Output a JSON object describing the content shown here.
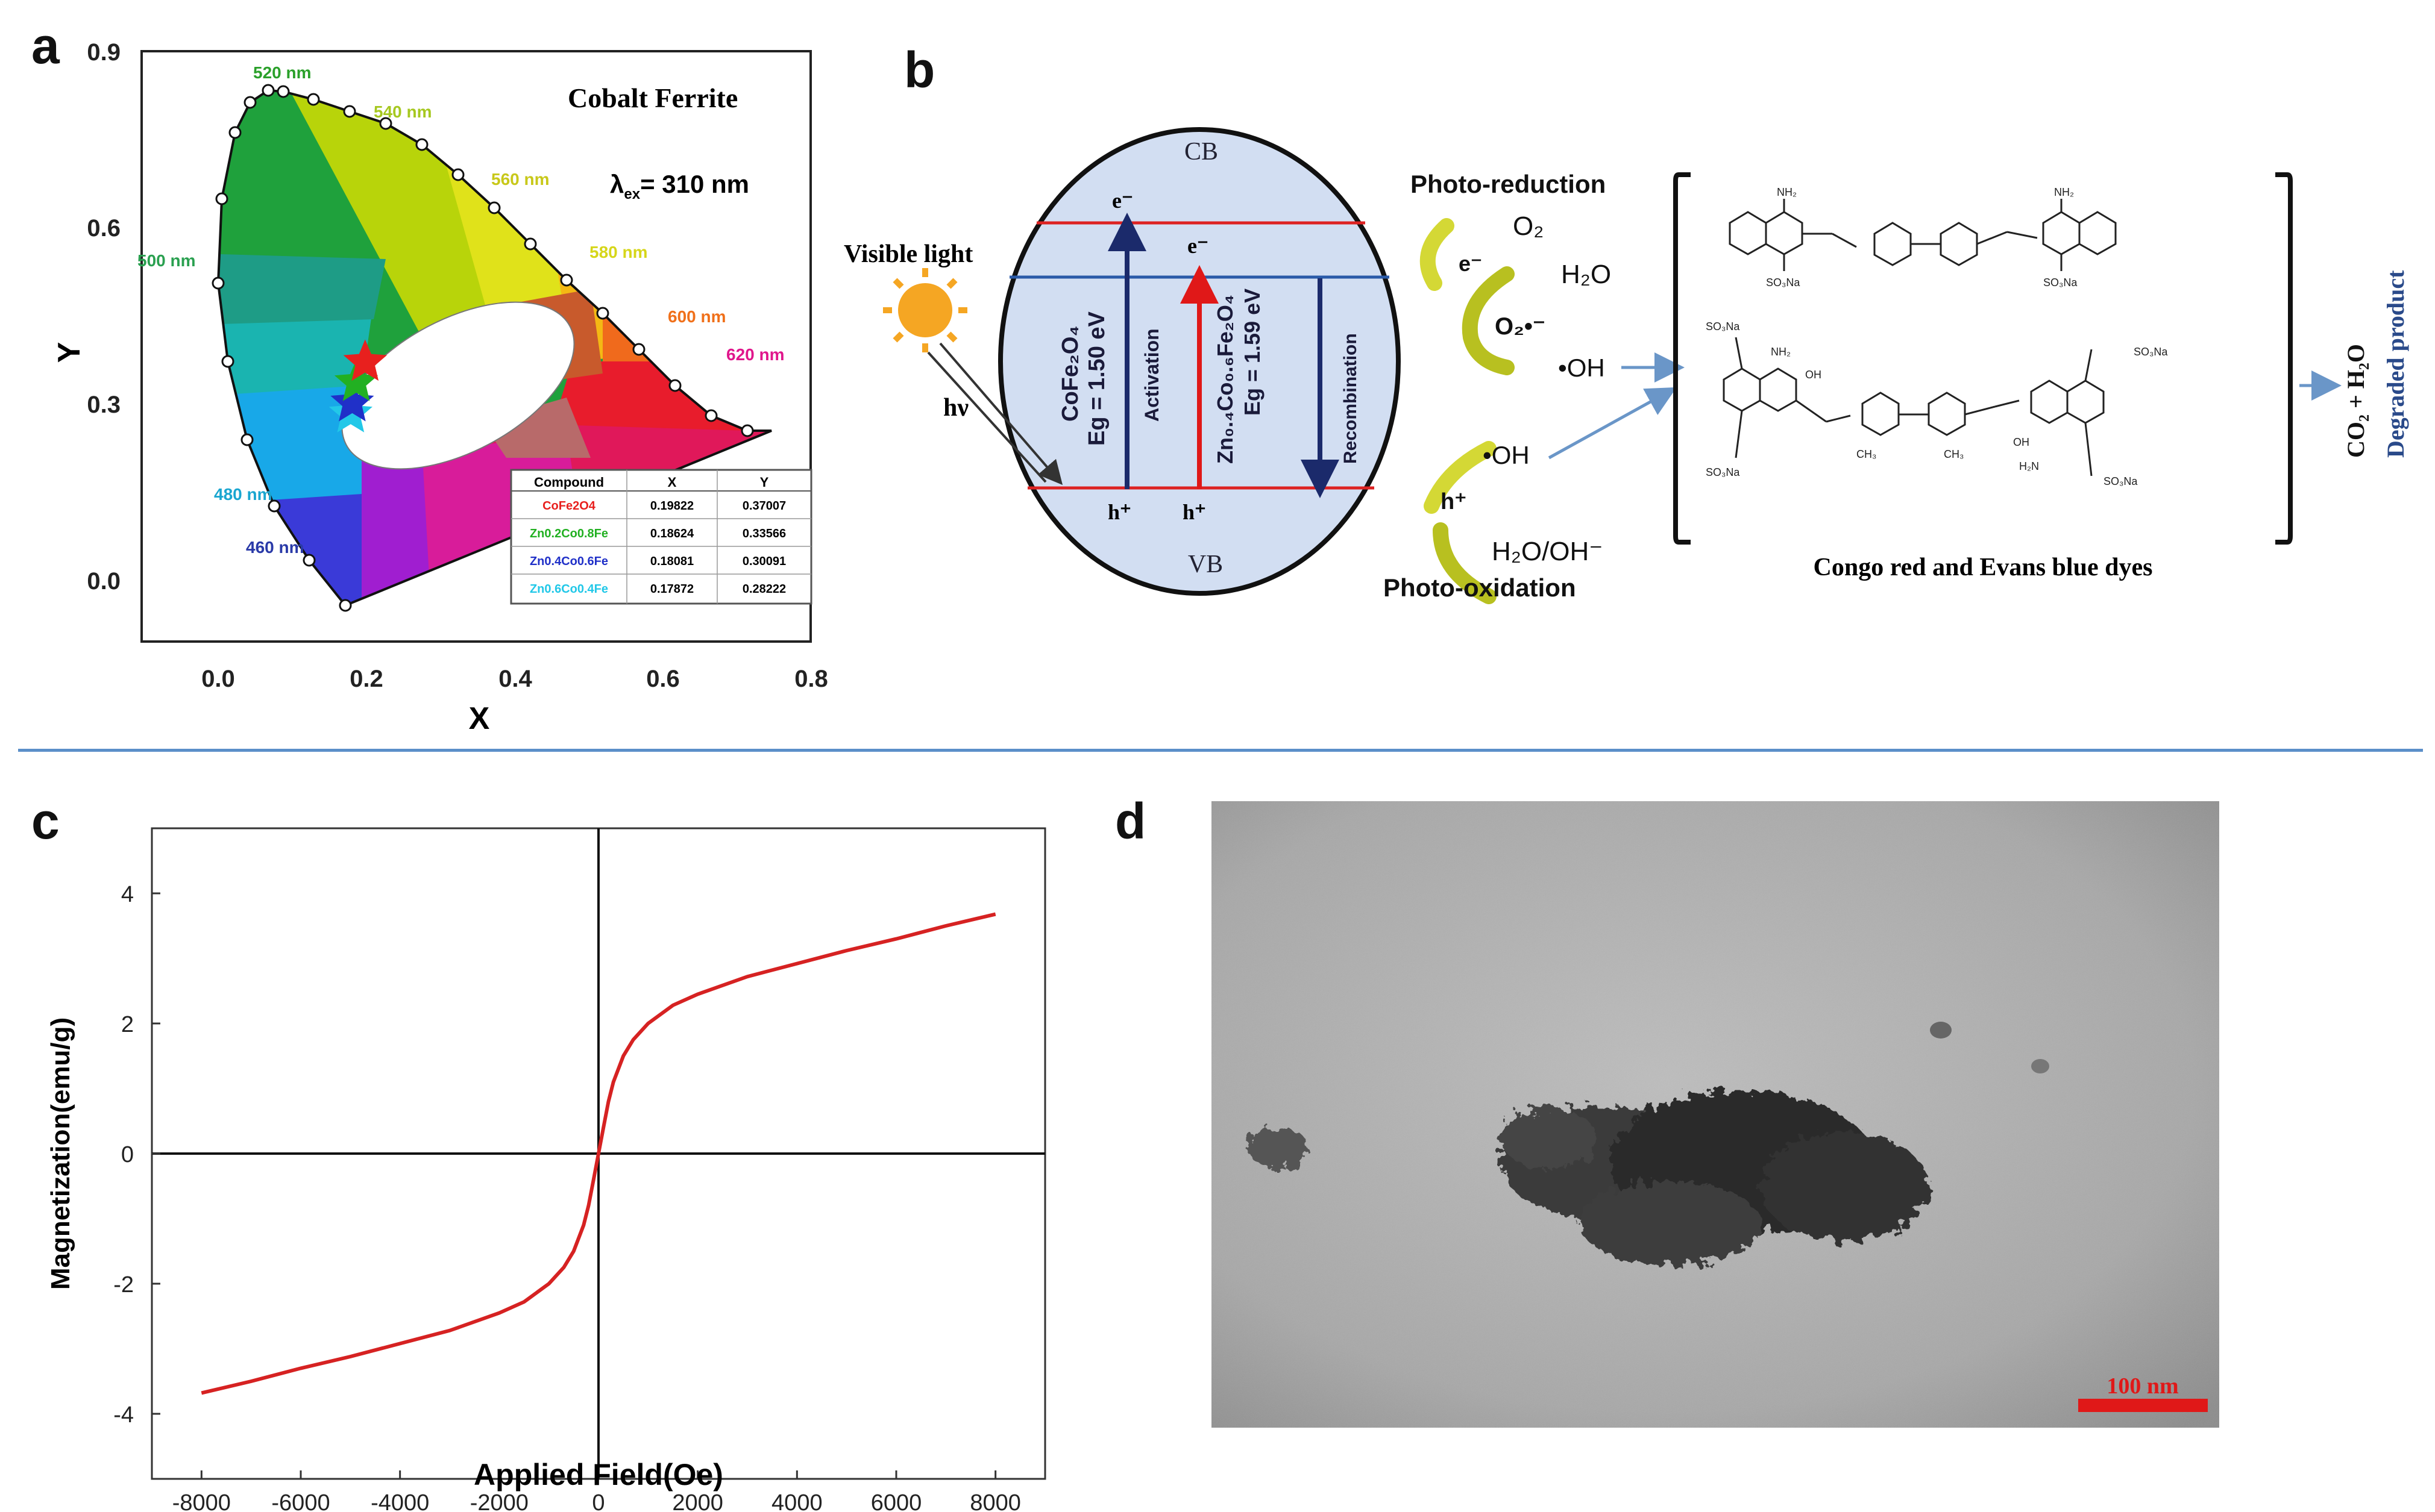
{
  "panels": {
    "a": "a",
    "b": "b",
    "c": "c",
    "d": "d"
  },
  "panel_a": {
    "title": "Cobalt Ferrite",
    "lambda_label": "λ",
    "lambda_sub": "ex",
    "lambda_value": "= 310 nm",
    "wavelength_labels": {
      "w520": "520 nm",
      "w540": "540 nm",
      "w560": "560 nm",
      "w580": "580 nm",
      "w500": "500 nm",
      "w600": "600 nm",
      "w620": "620 nm",
      "w480": "480 nm",
      "w460": "460 nm"
    },
    "colors": {
      "w520": "#2aa02a",
      "w540": "#a6c820",
      "w560": "#d0d020",
      "w580": "#d6d61a",
      "w500": "#2aa050",
      "w600": "#f0701a",
      "w620": "#e0168c",
      "w480": "#1aa6d0",
      "w460": "#2a3aa8"
    },
    "table": {
      "headers": [
        "Compound",
        "X",
        "Y"
      ],
      "rows": [
        {
          "name": "CoFe2O4",
          "x": "0.19822",
          "y": "0.37007",
          "color": "#e8201e"
        },
        {
          "name": "Zn0.2Co0.8Fe",
          "x": "0.18624",
          "y": "0.33566",
          "color": "#22b022"
        },
        {
          "name": "Zn0.4Co0.6Fe",
          "x": "0.18081",
          "y": "0.30091",
          "color": "#2030c8"
        },
        {
          "name": "Zn0.6Co0.4Fe",
          "x": "0.17872",
          "y": "0.28222",
          "color": "#22c8e8"
        }
      ]
    }
  },
  "panel_b": {
    "cb": "CB",
    "vb": "VB",
    "visible_light": "Visible light",
    "hv": "hν",
    "e_minus": "e⁻",
    "h_plus": "h⁺",
    "cofe": "CoFe₂O₄",
    "eg1": "Eg = 1.50 eV",
    "activation": "Activation",
    "znco": "Zn₀.₄Co₀.₆Fe₂O₄",
    "eg2": "Eg = 1.59 eV",
    "recombination": "Recombination",
    "photo_reduction": "Photo-reduction",
    "o2": "O₂",
    "h2o": "H₂O",
    "o2_radical": "O₂•⁻",
    "oh_radical": "•OH",
    "photo_oxidation": "Photo-oxidation",
    "h2o_oh": "H₂O/OH⁻",
    "dyes_caption": "Congo red and Evans blue dyes",
    "degraded": "Degraded product",
    "co2_h2o": "CO₂ + H₂O",
    "nh2": "NH₂",
    "so3na": "SO₃Na",
    "oh": "OH",
    "ch3": "CH₃",
    "h2n": "H₂N"
  },
  "chart_data": [
    {
      "type": "scatter",
      "panel": "a",
      "title": "Cobalt Ferrite",
      "xlabel": "X",
      "ylabel": "Y",
      "xlim": [
        -0.1,
        0.8
      ],
      "ylim": [
        -0.1,
        0.9
      ],
      "x_ticks": [
        "0.0",
        "0.2",
        "0.4",
        "0.6",
        "0.8"
      ],
      "y_ticks": [
        "0.0",
        "0.3",
        "0.6",
        "0.9"
      ],
      "series": [
        {
          "name": "CoFe2O4",
          "x": [
            0.19822
          ],
          "y": [
            0.37007
          ],
          "color": "#e8201e"
        },
        {
          "name": "Zn0.2Co0.8Fe",
          "x": [
            0.18624
          ],
          "y": [
            0.33566
          ],
          "color": "#22b022"
        },
        {
          "name": "Zn0.4Co0.6Fe",
          "x": [
            0.18081
          ],
          "y": [
            0.30091
          ],
          "color": "#2030c8"
        },
        {
          "name": "Zn0.6Co0.4Fe",
          "x": [
            0.17872
          ],
          "y": [
            0.28222
          ],
          "color": "#22c8e8"
        }
      ]
    },
    {
      "type": "line",
      "panel": "c",
      "xlabel": "Applied Field(Oe)",
      "ylabel": "Magnetization(emu/g)",
      "xlim": [
        -9000,
        9000
      ],
      "ylim": [
        -5,
        5
      ],
      "x_ticks": [
        "-8000",
        "-6000",
        "-4000",
        "-2000",
        "0",
        "2000",
        "4000",
        "6000",
        "8000"
      ],
      "y_ticks": [
        "-4",
        "-2",
        "0",
        "2",
        "4"
      ],
      "series": [
        {
          "color": "#d62222",
          "x": [
            -8000,
            -7000,
            -6000,
            -5000,
            -4000,
            -3000,
            -2000,
            -1500,
            -1000,
            -700,
            -500,
            -300,
            -200,
            -100,
            0,
            100,
            200,
            300,
            500,
            700,
            1000,
            1500,
            2000,
            3000,
            4000,
            5000,
            6000,
            7000,
            8000
          ],
          "y": [
            -3.68,
            -3.5,
            -3.3,
            -3.12,
            -2.92,
            -2.72,
            -2.45,
            -2.28,
            -2.0,
            -1.75,
            -1.5,
            -1.1,
            -0.8,
            -0.4,
            0.0,
            0.4,
            0.8,
            1.1,
            1.5,
            1.75,
            2.0,
            2.28,
            2.45,
            2.72,
            2.92,
            3.12,
            3.3,
            3.5,
            3.68
          ]
        }
      ]
    }
  ],
  "panel_d": {
    "scale_bar": "100 nm",
    "scale_color": "#e01818"
  }
}
